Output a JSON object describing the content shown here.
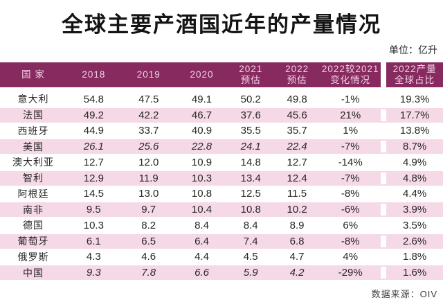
{
  "title": "全球主要产酒国近年的产量情况",
  "unit_label": "单位：亿升",
  "source_label": "数据来源：OIV",
  "colors": {
    "header_background": "#872A5F",
    "header_text": "#F3D2E4",
    "row_pink": "#F6D9E6",
    "body_text": "#262626",
    "title_text": "#141414"
  },
  "table": {
    "headers": [
      "国 家",
      "2018",
      "2019",
      "2020",
      "2021\n预估",
      "2022\n预估",
      "2022较2021\n变化情况",
      "2022产量\n全球占比"
    ],
    "rows": [
      {
        "country": "意大利",
        "italic": false,
        "values": [
          "54.8",
          "47.5",
          "49.1",
          "50.2",
          "49.8",
          "-1%",
          "19.3%"
        ]
      },
      {
        "country": "法国",
        "italic": false,
        "values": [
          "49.2",
          "42.2",
          "46.7",
          "37.6",
          "45.6",
          "21%",
          "17.7%"
        ]
      },
      {
        "country": "西班牙",
        "italic": false,
        "values": [
          "44.9",
          "33.7",
          "40.9",
          "35.5",
          "35.7",
          "1%",
          "13.8%"
        ]
      },
      {
        "country": "美国",
        "italic": true,
        "values": [
          "26.1",
          "25.6",
          "22.8",
          "24.1",
          "22.4",
          "-7%",
          "8.7%"
        ]
      },
      {
        "country": "澳大利亚",
        "italic": false,
        "values": [
          "12.7",
          "12.0",
          "10.9",
          "14.8",
          "12.7",
          "-14%",
          "4.9%"
        ]
      },
      {
        "country": "智利",
        "italic": false,
        "values": [
          "12.9",
          "11.9",
          "10.3",
          "13.4",
          "12.4",
          "-7%",
          "4.8%"
        ]
      },
      {
        "country": "阿根廷",
        "italic": false,
        "values": [
          "14.5",
          "13.0",
          "10.8",
          "12.5",
          "11.5",
          "-8%",
          "4.4%"
        ]
      },
      {
        "country": "南非",
        "italic": false,
        "values": [
          "9.5",
          "9.7",
          "10.4",
          "10.8",
          "10.2",
          "-6%",
          "3.9%"
        ]
      },
      {
        "country": "德国",
        "italic": false,
        "values": [
          "10.3",
          "8.2",
          "8.4",
          "8.4",
          "8.9",
          "6%",
          "3.5%"
        ]
      },
      {
        "country": "葡萄牙",
        "italic": false,
        "values": [
          "6.1",
          "6.5",
          "6.4",
          "7.4",
          "6.8",
          "-8%",
          "2.6%"
        ]
      },
      {
        "country": "俄罗斯",
        "italic": false,
        "values": [
          "4.3",
          "4.6",
          "4.4",
          "4.5",
          "4.7",
          "4%",
          "1.8%"
        ]
      },
      {
        "country": "中国",
        "italic": true,
        "values": [
          "9.3",
          "7.8",
          "6.6",
          "5.9",
          "4.2",
          "-29%",
          "1.6%"
        ]
      }
    ]
  },
  "chart_data": {
    "type": "table",
    "title": "全球主要产酒国近年的产量情况",
    "unit": "亿升",
    "source": "OIV",
    "columns": [
      "国家",
      "2018",
      "2019",
      "2020",
      "2021预估",
      "2022预估",
      "2022较2021变化情况",
      "2022产量全球占比"
    ],
    "rows": [
      [
        "意大利",
        54.8,
        47.5,
        49.1,
        50.2,
        49.8,
        "-1%",
        "19.3%"
      ],
      [
        "法国",
        49.2,
        42.2,
        46.7,
        37.6,
        45.6,
        "21%",
        "17.7%"
      ],
      [
        "西班牙",
        44.9,
        33.7,
        40.9,
        35.5,
        35.7,
        "1%",
        "13.8%"
      ],
      [
        "美国",
        26.1,
        25.6,
        22.8,
        24.1,
        22.4,
        "-7%",
        "8.7%"
      ],
      [
        "澳大利亚",
        12.7,
        12.0,
        10.9,
        14.8,
        12.7,
        "-14%",
        "4.9%"
      ],
      [
        "智利",
        12.9,
        11.9,
        10.3,
        13.4,
        12.4,
        "-7%",
        "4.8%"
      ],
      [
        "阿根廷",
        14.5,
        13.0,
        10.8,
        12.5,
        11.5,
        "-8%",
        "4.4%"
      ],
      [
        "南非",
        9.5,
        9.7,
        10.4,
        10.8,
        10.2,
        "-6%",
        "3.9%"
      ],
      [
        "德国",
        10.3,
        8.2,
        8.4,
        8.4,
        8.9,
        "6%",
        "3.5%"
      ],
      [
        "葡萄牙",
        6.1,
        6.5,
        6.4,
        7.4,
        6.8,
        "-8%",
        "2.6%"
      ],
      [
        "俄罗斯",
        4.3,
        4.6,
        4.4,
        4.5,
        4.7,
        "4%",
        "1.8%"
      ],
      [
        "中国",
        9.3,
        7.8,
        6.6,
        5.9,
        4.2,
        "-29%",
        "1.6%"
      ]
    ]
  }
}
